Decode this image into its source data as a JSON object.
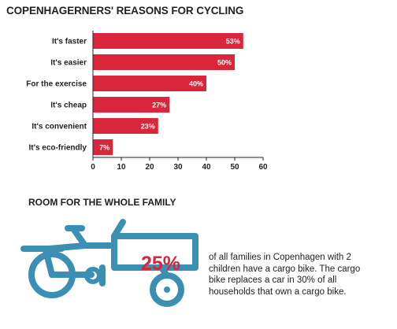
{
  "title": "COPENHAGERNERS' REASONS FOR CYCLING",
  "chart_data": {
    "type": "bar",
    "orientation": "horizontal",
    "title": "COPENHAGERNERS' REASONS FOR CYCLING",
    "categories": [
      "It's faster",
      "It's easier",
      "For the exercise",
      "It's cheap",
      "It's convenient",
      "It's eco-friendly"
    ],
    "values": [
      53,
      50,
      40,
      27,
      23,
      7
    ],
    "value_labels": [
      "53%",
      "50%",
      "40%",
      "27%",
      "23%",
      "7%"
    ],
    "xlim": [
      0,
      60
    ],
    "xticks": [
      0,
      10,
      20,
      30,
      40,
      50,
      60
    ],
    "xlabel": "",
    "ylabel": "",
    "grid": false,
    "bar_color": "#d9263b"
  },
  "family_section": {
    "title": "ROOM FOR THE WHOLE FAMILY",
    "stat_value": "25%",
    "stat_text": "of all families in Copenhagen with 2 children have a cargo bike. The cargo bike replaces a car in 30% of all households that own a cargo bike.",
    "stat_color": "#d9263b",
    "icon": "cargo-bike-icon",
    "icon_color": "#3b8fb3"
  }
}
